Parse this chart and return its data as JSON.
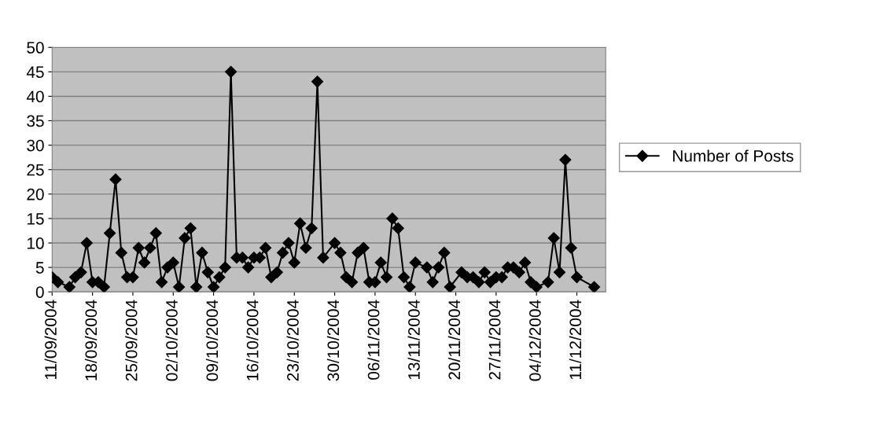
{
  "chart_data": {
    "type": "line",
    "x": [
      "2004-09-11",
      "2004-09-12",
      "2004-09-14",
      "2004-09-15",
      "2004-09-16",
      "2004-09-17",
      "2004-09-18",
      "2004-09-19",
      "2004-09-20",
      "2004-09-21",
      "2004-09-22",
      "2004-09-23",
      "2004-09-24",
      "2004-09-25",
      "2004-09-26",
      "2004-09-27",
      "2004-09-28",
      "2004-09-29",
      "2004-09-30",
      "2004-10-01",
      "2004-10-02",
      "2004-10-03",
      "2004-10-04",
      "2004-10-05",
      "2004-10-06",
      "2004-10-07",
      "2004-10-08",
      "2004-10-09",
      "2004-10-10",
      "2004-10-11",
      "2004-10-12",
      "2004-10-13",
      "2004-10-14",
      "2004-10-15",
      "2004-10-16",
      "2004-10-17",
      "2004-10-18",
      "2004-10-19",
      "2004-10-20",
      "2004-10-21",
      "2004-10-22",
      "2004-10-23",
      "2004-10-24",
      "2004-10-25",
      "2004-10-26",
      "2004-10-27",
      "2004-10-28",
      "2004-10-30",
      "2004-10-31",
      "2004-11-01",
      "2004-11-02",
      "2004-11-03",
      "2004-11-04",
      "2004-11-05",
      "2004-11-06",
      "2004-11-07",
      "2004-11-08",
      "2004-11-09",
      "2004-11-10",
      "2004-11-11",
      "2004-11-12",
      "2004-11-13",
      "2004-11-15",
      "2004-11-16",
      "2004-11-17",
      "2004-11-18",
      "2004-11-19",
      "2004-11-21",
      "2004-11-22",
      "2004-11-23",
      "2004-11-24",
      "2004-11-25",
      "2004-11-26",
      "2004-11-27",
      "2004-11-28",
      "2004-11-29",
      "2004-11-30",
      "2004-12-01",
      "2004-12-02",
      "2004-12-03",
      "2004-12-04",
      "2004-12-06",
      "2004-12-07",
      "2004-12-08",
      "2004-12-09",
      "2004-12-10",
      "2004-12-11",
      "2004-12-14"
    ],
    "series": [
      {
        "name": "Number of Posts",
        "color": "#000000",
        "values": [
          3,
          2,
          1,
          3,
          4,
          10,
          2,
          2,
          1,
          12,
          23,
          8,
          3,
          3,
          9,
          6,
          9,
          12,
          2,
          5,
          6,
          1,
          11,
          13,
          1,
          8,
          4,
          1,
          3,
          5,
          45,
          7,
          7,
          5,
          7,
          7,
          9,
          3,
          4,
          8,
          10,
          6,
          14,
          9,
          13,
          43,
          7,
          10,
          8,
          3,
          2,
          8,
          9,
          2,
          2,
          6,
          3,
          15,
          13,
          3,
          1,
          6,
          5,
          2,
          5,
          8,
          1,
          4,
          3,
          3,
          2,
          4,
          2,
          3,
          3,
          5,
          5,
          4,
          6,
          2,
          1,
          2,
          11,
          4,
          27,
          9,
          3,
          1
        ]
      }
    ],
    "xlim": [
      "2004-09-11",
      "2004-12-16"
    ],
    "xticks": [
      {
        "value": "2004-09-11",
        "label": "11/09/2004"
      },
      {
        "value": "2004-09-18",
        "label": "18/09/2004"
      },
      {
        "value": "2004-09-25",
        "label": "25/09/2004"
      },
      {
        "value": "2004-10-02",
        "label": "02/10/2004"
      },
      {
        "value": "2004-10-09",
        "label": "09/10/2004"
      },
      {
        "value": "2004-10-16",
        "label": "16/10/2004"
      },
      {
        "value": "2004-10-23",
        "label": "23/10/2004"
      },
      {
        "value": "2004-10-30",
        "label": "30/10/2004"
      },
      {
        "value": "2004-11-06",
        "label": "06/11/2004"
      },
      {
        "value": "2004-11-13",
        "label": "13/11/2004"
      },
      {
        "value": "2004-11-20",
        "label": "20/11/2004"
      },
      {
        "value": "2004-11-27",
        "label": "27/11/2004"
      },
      {
        "value": "2004-12-04",
        "label": "04/12/2004"
      },
      {
        "value": "2004-12-11",
        "label": "11/12/2004"
      }
    ],
    "ylim": [
      0,
      50
    ],
    "yticks": [
      0,
      5,
      10,
      15,
      20,
      25,
      30,
      35,
      40,
      45,
      50
    ],
    "grid": "y",
    "legend": "right",
    "marker": "diamond",
    "line_style": "solid"
  }
}
